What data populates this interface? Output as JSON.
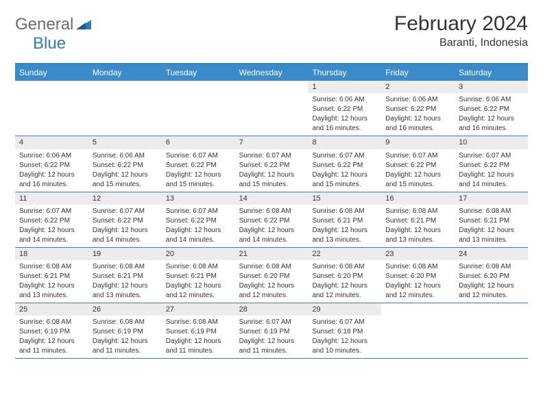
{
  "logo": {
    "general": "General",
    "blue": "Blue"
  },
  "title": "February 2024",
  "subtitle": "Baranti, Indonesia",
  "colors": {
    "header_bg": "#3a8bc9",
    "border": "#3a7fb5",
    "daynum_bg": "#ececec",
    "text": "#333333",
    "logo_gray": "#6b6b6b",
    "logo_blue": "#2f7bbf"
  },
  "dayHeaders": [
    "Sunday",
    "Monday",
    "Tuesday",
    "Wednesday",
    "Thursday",
    "Friday",
    "Saturday"
  ],
  "weeks": [
    [
      {
        "empty": true
      },
      {
        "empty": true
      },
      {
        "empty": true
      },
      {
        "empty": true
      },
      {
        "num": "1",
        "sunrise": "Sunrise: 6:06 AM",
        "sunset": "Sunset: 6:22 PM",
        "dl1": "Daylight: 12 hours",
        "dl2": "and 16 minutes."
      },
      {
        "num": "2",
        "sunrise": "Sunrise: 6:06 AM",
        "sunset": "Sunset: 6:22 PM",
        "dl1": "Daylight: 12 hours",
        "dl2": "and 16 minutes."
      },
      {
        "num": "3",
        "sunrise": "Sunrise: 6:06 AM",
        "sunset": "Sunset: 6:22 PM",
        "dl1": "Daylight: 12 hours",
        "dl2": "and 16 minutes."
      }
    ],
    [
      {
        "num": "4",
        "sunrise": "Sunrise: 6:06 AM",
        "sunset": "Sunset: 6:22 PM",
        "dl1": "Daylight: 12 hours",
        "dl2": "and 16 minutes."
      },
      {
        "num": "5",
        "sunrise": "Sunrise: 6:06 AM",
        "sunset": "Sunset: 6:22 PM",
        "dl1": "Daylight: 12 hours",
        "dl2": "and 15 minutes."
      },
      {
        "num": "6",
        "sunrise": "Sunrise: 6:07 AM",
        "sunset": "Sunset: 6:22 PM",
        "dl1": "Daylight: 12 hours",
        "dl2": "and 15 minutes."
      },
      {
        "num": "7",
        "sunrise": "Sunrise: 6:07 AM",
        "sunset": "Sunset: 6:22 PM",
        "dl1": "Daylight: 12 hours",
        "dl2": "and 15 minutes."
      },
      {
        "num": "8",
        "sunrise": "Sunrise: 6:07 AM",
        "sunset": "Sunset: 6:22 PM",
        "dl1": "Daylight: 12 hours",
        "dl2": "and 15 minutes."
      },
      {
        "num": "9",
        "sunrise": "Sunrise: 6:07 AM",
        "sunset": "Sunset: 6:22 PM",
        "dl1": "Daylight: 12 hours",
        "dl2": "and 15 minutes."
      },
      {
        "num": "10",
        "sunrise": "Sunrise: 6:07 AM",
        "sunset": "Sunset: 6:22 PM",
        "dl1": "Daylight: 12 hours",
        "dl2": "and 14 minutes."
      }
    ],
    [
      {
        "num": "11",
        "sunrise": "Sunrise: 6:07 AM",
        "sunset": "Sunset: 6:22 PM",
        "dl1": "Daylight: 12 hours",
        "dl2": "and 14 minutes."
      },
      {
        "num": "12",
        "sunrise": "Sunrise: 6:07 AM",
        "sunset": "Sunset: 6:22 PM",
        "dl1": "Daylight: 12 hours",
        "dl2": "and 14 minutes."
      },
      {
        "num": "13",
        "sunrise": "Sunrise: 6:07 AM",
        "sunset": "Sunset: 6:22 PM",
        "dl1": "Daylight: 12 hours",
        "dl2": "and 14 minutes."
      },
      {
        "num": "14",
        "sunrise": "Sunrise: 6:08 AM",
        "sunset": "Sunset: 6:22 PM",
        "dl1": "Daylight: 12 hours",
        "dl2": "and 14 minutes."
      },
      {
        "num": "15",
        "sunrise": "Sunrise: 6:08 AM",
        "sunset": "Sunset: 6:21 PM",
        "dl1": "Daylight: 12 hours",
        "dl2": "and 13 minutes."
      },
      {
        "num": "16",
        "sunrise": "Sunrise: 6:08 AM",
        "sunset": "Sunset: 6:21 PM",
        "dl1": "Daylight: 12 hours",
        "dl2": "and 13 minutes."
      },
      {
        "num": "17",
        "sunrise": "Sunrise: 6:08 AM",
        "sunset": "Sunset: 6:21 PM",
        "dl1": "Daylight: 12 hours",
        "dl2": "and 13 minutes."
      }
    ],
    [
      {
        "num": "18",
        "sunrise": "Sunrise: 6:08 AM",
        "sunset": "Sunset: 6:21 PM",
        "dl1": "Daylight: 12 hours",
        "dl2": "and 13 minutes."
      },
      {
        "num": "19",
        "sunrise": "Sunrise: 6:08 AM",
        "sunset": "Sunset: 6:21 PM",
        "dl1": "Daylight: 12 hours",
        "dl2": "and 13 minutes."
      },
      {
        "num": "20",
        "sunrise": "Sunrise: 6:08 AM",
        "sunset": "Sunset: 6:21 PM",
        "dl1": "Daylight: 12 hours",
        "dl2": "and 12 minutes."
      },
      {
        "num": "21",
        "sunrise": "Sunrise: 6:08 AM",
        "sunset": "Sunset: 6:20 PM",
        "dl1": "Daylight: 12 hours",
        "dl2": "and 12 minutes."
      },
      {
        "num": "22",
        "sunrise": "Sunrise: 6:08 AM",
        "sunset": "Sunset: 6:20 PM",
        "dl1": "Daylight: 12 hours",
        "dl2": "and 12 minutes."
      },
      {
        "num": "23",
        "sunrise": "Sunrise: 6:08 AM",
        "sunset": "Sunset: 6:20 PM",
        "dl1": "Daylight: 12 hours",
        "dl2": "and 12 minutes."
      },
      {
        "num": "24",
        "sunrise": "Sunrise: 6:08 AM",
        "sunset": "Sunset: 6:20 PM",
        "dl1": "Daylight: 12 hours",
        "dl2": "and 12 minutes."
      }
    ],
    [
      {
        "num": "25",
        "sunrise": "Sunrise: 6:08 AM",
        "sunset": "Sunset: 6:19 PM",
        "dl1": "Daylight: 12 hours",
        "dl2": "and 11 minutes."
      },
      {
        "num": "26",
        "sunrise": "Sunrise: 6:08 AM",
        "sunset": "Sunset: 6:19 PM",
        "dl1": "Daylight: 12 hours",
        "dl2": "and 11 minutes."
      },
      {
        "num": "27",
        "sunrise": "Sunrise: 6:08 AM",
        "sunset": "Sunset: 6:19 PM",
        "dl1": "Daylight: 12 hours",
        "dl2": "and 11 minutes."
      },
      {
        "num": "28",
        "sunrise": "Sunrise: 6:07 AM",
        "sunset": "Sunset: 6:19 PM",
        "dl1": "Daylight: 12 hours",
        "dl2": "and 11 minutes."
      },
      {
        "num": "29",
        "sunrise": "Sunrise: 6:07 AM",
        "sunset": "Sunset: 6:18 PM",
        "dl1": "Daylight: 12 hours",
        "dl2": "and 10 minutes."
      },
      {
        "empty": true
      },
      {
        "empty": true
      }
    ]
  ]
}
